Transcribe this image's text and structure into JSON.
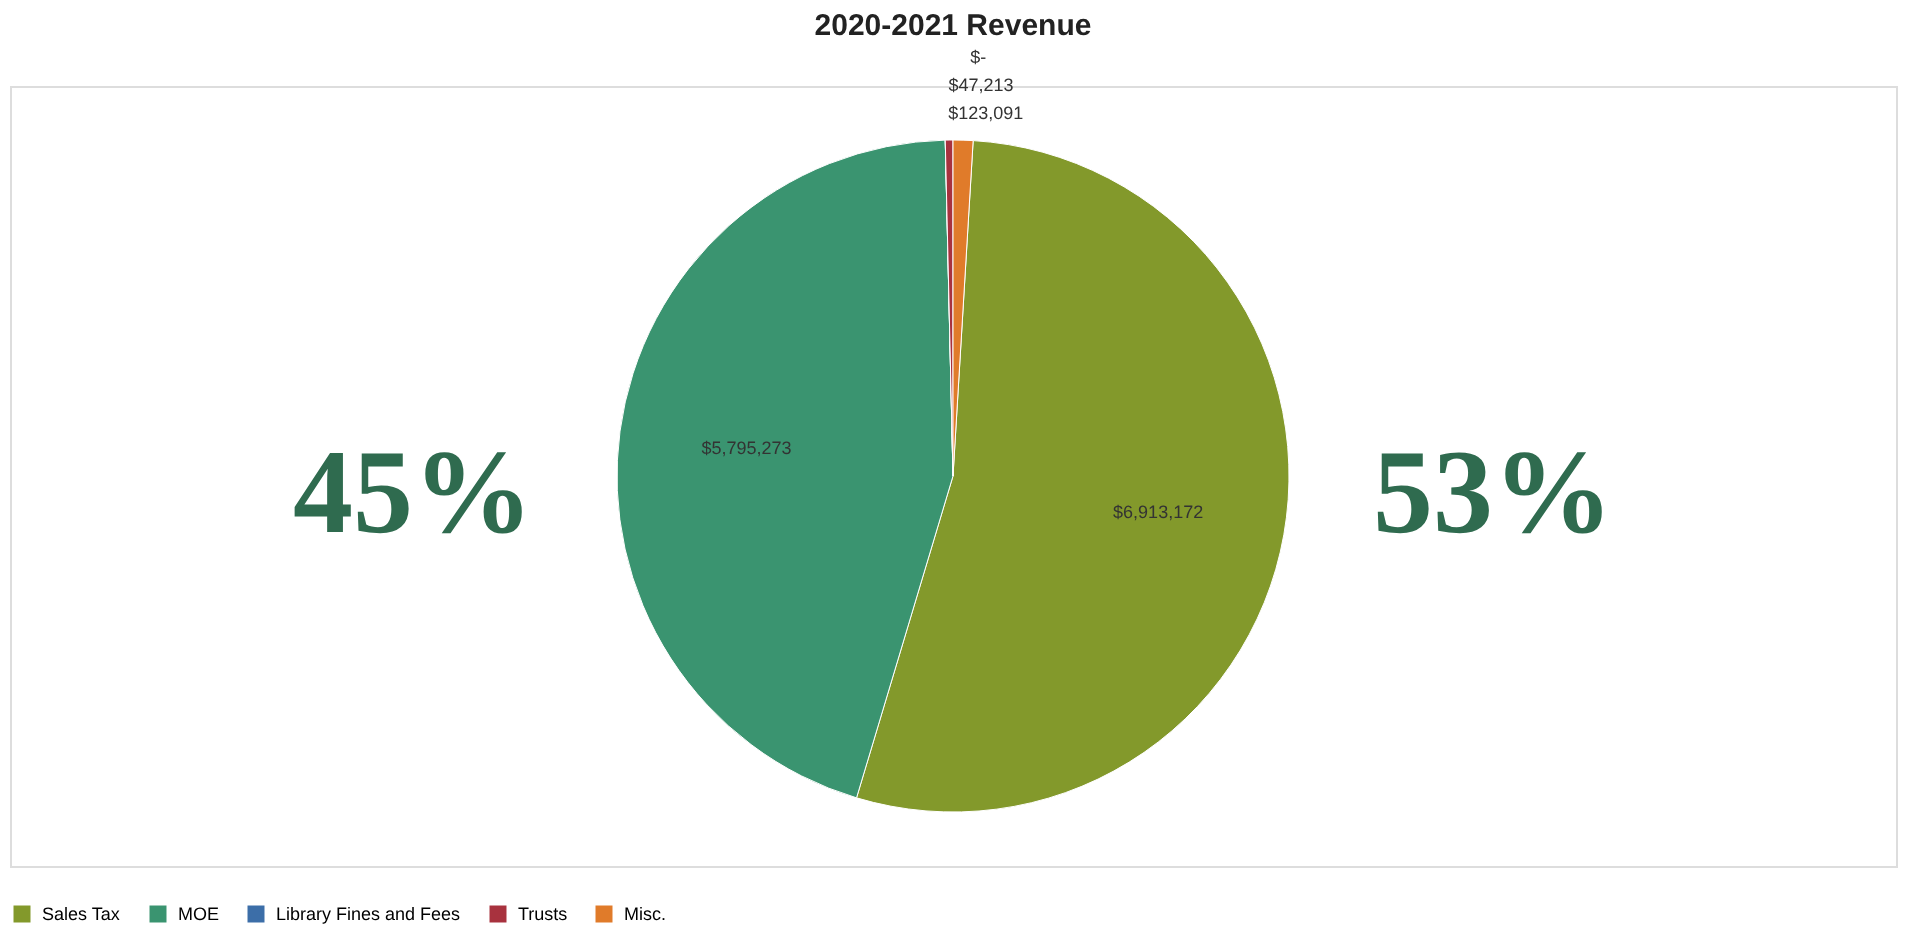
{
  "chart_data": {
    "type": "pie",
    "title": "2020-2021 Revenue",
    "categories": [
      "Sales Tax",
      "MOE",
      "Library Fines and Fees",
      "Trusts",
      "Misc."
    ],
    "values": [
      6913172,
      5795273,
      0,
      47213,
      123091
    ],
    "colors": [
      "#83992b",
      "#3a9470",
      "#3c6ea8",
      "#a8323e",
      "#e07b2a"
    ],
    "value_labels": [
      "$6,913,172",
      "$5,795,273",
      "$-",
      "$47,213",
      "$123,091"
    ],
    "annotations": [
      "45%",
      "53%"
    ],
    "legend": "bottom"
  }
}
